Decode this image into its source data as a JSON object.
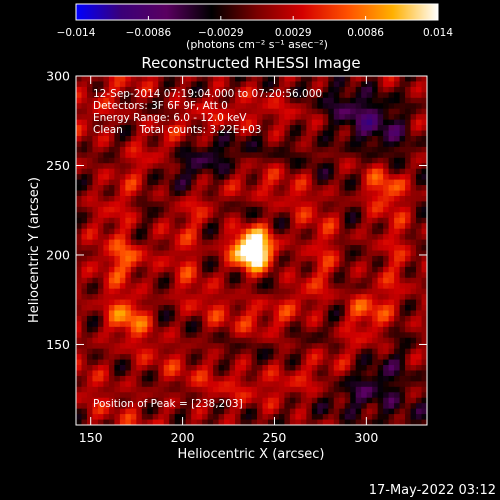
{
  "chart_data": {
    "type": "heatmap",
    "title": "Reconstructed RHESSI Image",
    "xlabel": "Heliocentric X (arcsec)",
    "ylabel": "Heliocentric Y (arcsec)",
    "xlim": [
      142,
      333
    ],
    "ylim": [
      105,
      300
    ],
    "xticks": [
      150,
      200,
      250,
      300
    ],
    "yticks": [
      150,
      200,
      250,
      300
    ],
    "colorbar": {
      "label": "(photons cm⁻² s⁻¹ asec⁻²)",
      "range": [
        -0.014,
        0.014
      ],
      "ticks": [
        "−0.014",
        "−0.0086",
        "−0.0029",
        "0.0029",
        "0.0086",
        "0.014"
      ],
      "colormap": [
        "#0000ff",
        "#3a0078",
        "#5a0060",
        "#000000",
        "#7a0000",
        "#d40000",
        "#ff5000",
        "#ffb000",
        "#ffffff"
      ]
    },
    "annotations": [
      "12-Sep-2014 07:19:04.000 to 07:20:56.000",
      "Detectors: 3F 6F 9F, Att 0",
      "Energy Range: 6.0 - 12.0 keV",
      "Clean     Total counts: 3.22E+03",
      "Position of Peak = [238,203]"
    ],
    "peak": {
      "x": 238,
      "y": 203,
      "value": 0.014
    },
    "secondary_sources": [
      {
        "x": 172,
        "y": 198,
        "value": 0.006
      },
      {
        "x": 170,
        "y": 165,
        "value": 0.006
      },
      {
        "x": 312,
        "y": 238,
        "value": 0.005
      },
      {
        "x": 298,
        "y": 170,
        "value": 0.005
      }
    ],
    "footer_timestamp": "17-May-2022 03:12"
  }
}
